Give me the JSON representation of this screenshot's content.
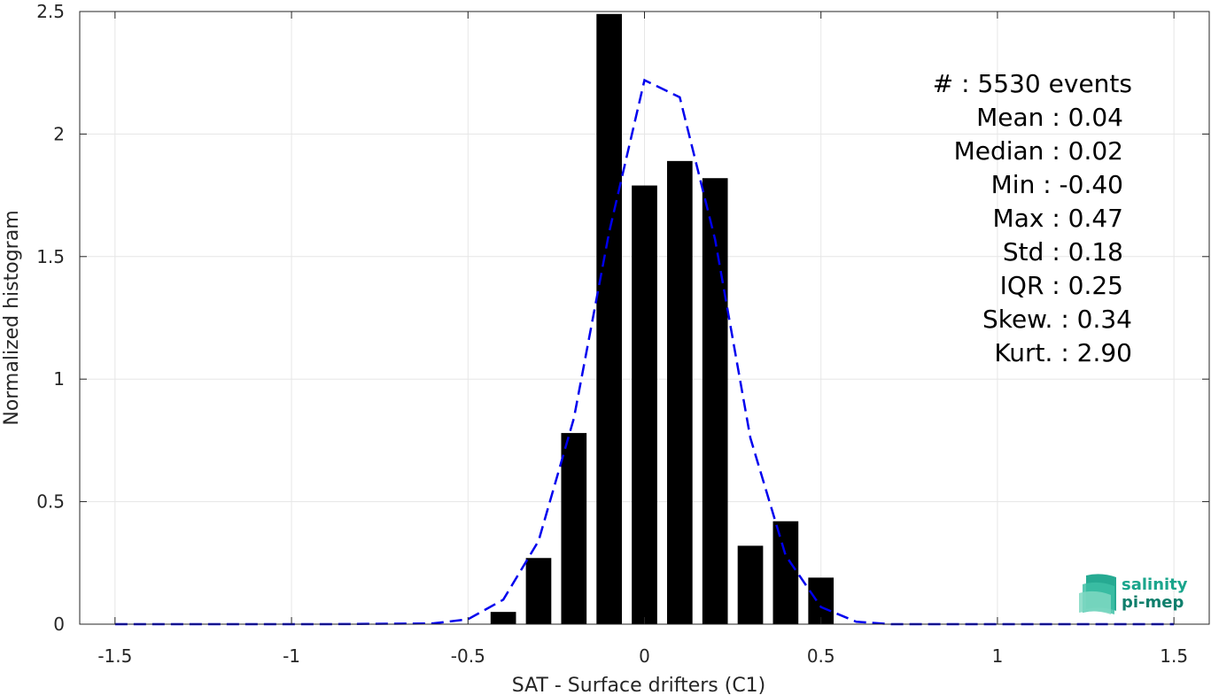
{
  "chart_data": {
    "type": "bar",
    "xlabel": "SAT - Surface drifters (C1)",
    "ylabel": "Normalized histogram",
    "xlim": [
      -1.6,
      1.6
    ],
    "ylim": [
      0,
      2.5
    ],
    "xticks": [
      -1.5,
      -1,
      -0.5,
      0,
      0.5,
      1,
      1.5
    ],
    "xtick_labels": [
      "-1.5",
      "-1",
      "-0.5",
      "0",
      "0.5",
      "1",
      "1.5"
    ],
    "yticks": [
      0,
      0.5,
      1,
      1.5,
      2,
      2.5
    ],
    "ytick_labels": [
      "0",
      "0.5",
      "1",
      "1.5",
      "2",
      "2.5"
    ],
    "grid": true,
    "bin_width": 0.1,
    "bar_color": "#000000",
    "bars": [
      {
        "x": -0.4,
        "y": 0.05
      },
      {
        "x": -0.3,
        "y": 0.27
      },
      {
        "x": -0.2,
        "y": 0.78
      },
      {
        "x": -0.1,
        "y": 2.49
      },
      {
        "x": 0.0,
        "y": 1.79
      },
      {
        "x": 0.1,
        "y": 1.89
      },
      {
        "x": 0.2,
        "y": 1.82
      },
      {
        "x": 0.3,
        "y": 0.32
      },
      {
        "x": 0.4,
        "y": 0.42
      },
      {
        "x": 0.5,
        "y": 0.19
      }
    ],
    "fit_curve": {
      "style": "dashed",
      "color": "#0000ee",
      "points": [
        [
          -1.5,
          0.0
        ],
        [
          -1.2,
          0.0
        ],
        [
          -0.9,
          0.0
        ],
        [
          -0.6,
          0.003
        ],
        [
          -0.5,
          0.02
        ],
        [
          -0.4,
          0.1
        ],
        [
          -0.3,
          0.34
        ],
        [
          -0.2,
          0.84
        ],
        [
          -0.1,
          1.6
        ],
        [
          0.0,
          2.22
        ],
        [
          0.1,
          2.15
        ],
        [
          0.2,
          1.57
        ],
        [
          0.3,
          0.76
        ],
        [
          0.4,
          0.28
        ],
        [
          0.5,
          0.07
        ],
        [
          0.6,
          0.01
        ],
        [
          0.7,
          0.0
        ],
        [
          1.0,
          0.0
        ],
        [
          1.5,
          0.0
        ]
      ]
    },
    "stats": [
      "#  : 5530 events",
      "Mean : 0.04",
      "Median : 0.02",
      "Min : -0.40",
      "Max : 0.47",
      "Std : 0.18",
      "IQR : 0.25",
      "Skew. : 0.34",
      "Kurt. : 2.90"
    ]
  },
  "logo": {
    "line1": "salinity",
    "line2": "pi-mep",
    "color": "#1aa58c"
  }
}
